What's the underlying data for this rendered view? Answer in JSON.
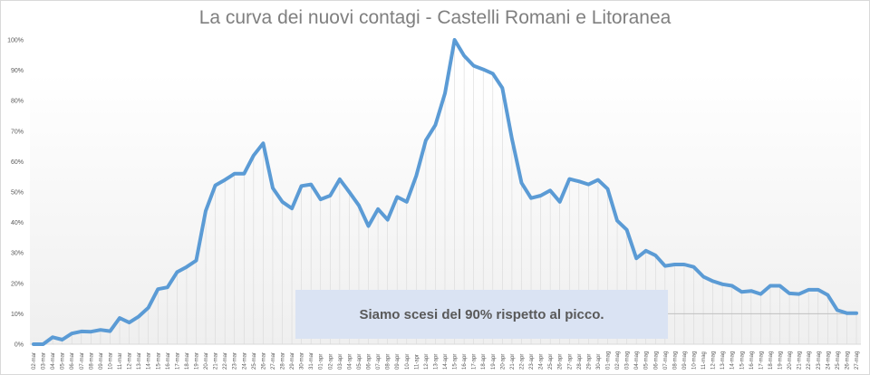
{
  "chart_data": {
    "type": "line",
    "title": "La curva dei nuovi contagi - Castelli Romani e Litoranea",
    "xlabel": "",
    "ylabel": "",
    "ylim": [
      0,
      100
    ],
    "yticks": [
      "0%",
      "10%",
      "20%",
      "30%",
      "40%",
      "50%",
      "60%",
      "70%",
      "80%",
      "90%",
      "100%"
    ],
    "grid": false,
    "legend": "none",
    "line_color": "#5b9bd5",
    "categories": [
      "02-mar",
      "03-mar",
      "04-mar",
      "05-mar",
      "06-mar",
      "07-mar",
      "08-mar",
      "09-mar",
      "10-mar",
      "11-mar",
      "12-mar",
      "13-mar",
      "14-mar",
      "15-mar",
      "16-mar",
      "17-mar",
      "18-mar",
      "19-mar",
      "20-mar",
      "21-mar",
      "22-mar",
      "23-mar",
      "24-mar",
      "25-mar",
      "26-mar",
      "27-mar",
      "28-mar",
      "29-mar",
      "30-mar",
      "31-mar",
      "01-apr",
      "02-apr",
      "03-apr",
      "04-apr",
      "05-apr",
      "06-apr",
      "07-apr",
      "08-apr",
      "09-apr",
      "10-apr",
      "11-apr",
      "12-apr",
      "13-apr",
      "14-apr",
      "15-apr",
      "16-apr",
      "17-apr",
      "18-apr",
      "19-apr",
      "20-apr",
      "21-apr",
      "22-apr",
      "23-apr",
      "24-apr",
      "25-apr",
      "26-apr",
      "27-apr",
      "28-apr",
      "29-apr",
      "30-apr",
      "01-mag",
      "02-mag",
      "03-mag",
      "04-mag",
      "05-mag",
      "06-mag",
      "07-mag",
      "08-mag",
      "09-mag",
      "10-mag",
      "11-mag",
      "12-mag",
      "13-mag",
      "14-mag",
      "15-mag",
      "16-mag",
      "17-mag",
      "18-mag",
      "19-mag",
      "20-mag",
      "21-mag",
      "22-mag",
      "23-mag",
      "24-mag",
      "25-mag",
      "26-mag",
      "27-mag"
    ],
    "values": [
      0,
      0,
      2.3,
      1.5,
      3.5,
      4.2,
      4.1,
      4.7,
      4.3,
      8.6,
      7.1,
      9.1,
      12,
      18.1,
      18.7,
      23.7,
      25.4,
      27.5,
      43.8,
      52.2,
      54,
      56,
      56,
      62,
      66,
      51.3,
      46.8,
      44.6,
      52,
      52.5,
      47.6,
      48.8,
      54.2,
      50,
      45.6,
      38.8,
      44.4,
      40.9,
      48.4,
      46.8,
      55.3,
      67,
      72,
      82.4,
      100,
      94.8,
      91.5,
      90.3,
      88.9,
      84.2,
      67.5,
      53,
      48,
      48.8,
      50.5,
      46.8,
      54.3,
      53.5,
      52.5,
      54,
      51,
      40.6,
      37.6,
      28.2,
      30.7,
      29.2,
      25.7,
      26.2,
      26.2,
      25.4,
      22.2,
      20.7,
      19.7,
      19.2,
      17.2,
      17.5,
      16.5,
      19.2,
      19.2,
      16.7,
      16.5,
      17.9,
      17.9,
      16.2,
      11.2,
      10.2,
      10.2
    ],
    "reference_line": 10,
    "annotation": "Siamo scesi del 90% rispetto al picco."
  }
}
